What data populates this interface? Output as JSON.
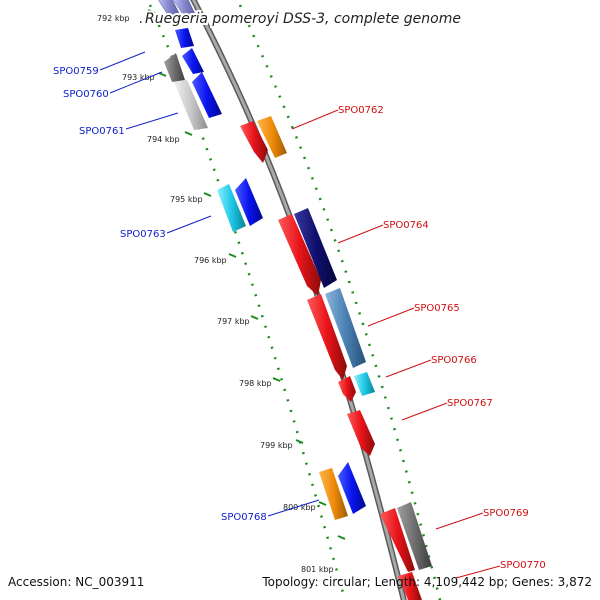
{
  "title": "Ruegeria pomeroyi DSS-3, complete genome",
  "accession_text": "Accession: NC_003911",
  "topology_text": "Topology: circular; Length: 4,109,442 bp; Genes: 3,872",
  "colors": {
    "backbone": "#8c8c8c",
    "tick": "#1e8a1e",
    "forward_label": "#1020c8",
    "reverse_label": "#d01010",
    "blue": "#0a14f0",
    "red": "#e8141a",
    "orange": "#f08c0a",
    "cyan": "#1ec8e6",
    "navy": "#101070",
    "steel": "#4a82b4",
    "gray": "#6e6e6e",
    "lightgray": "#c8c8c8",
    "lavender": "#8c8cd2"
  },
  "kbp_ticks": [
    "792 kbp",
    "793 kbp",
    "794 kbp",
    "795 kbp",
    "796 kbp",
    "797 kbp",
    "798 kbp",
    "799 kbp",
    "800 kbp",
    "801 kbp"
  ],
  "gene_labels_forward": [
    "SPO0759",
    "SPO0760",
    "SPO0761",
    "SPO0763",
    "SPO0768"
  ],
  "gene_labels_reverse": [
    "SPO0762",
    "SPO0764",
    "SPO0765",
    "SPO0766",
    "SPO0767",
    "SPO0769",
    "SPO0770"
  ]
}
